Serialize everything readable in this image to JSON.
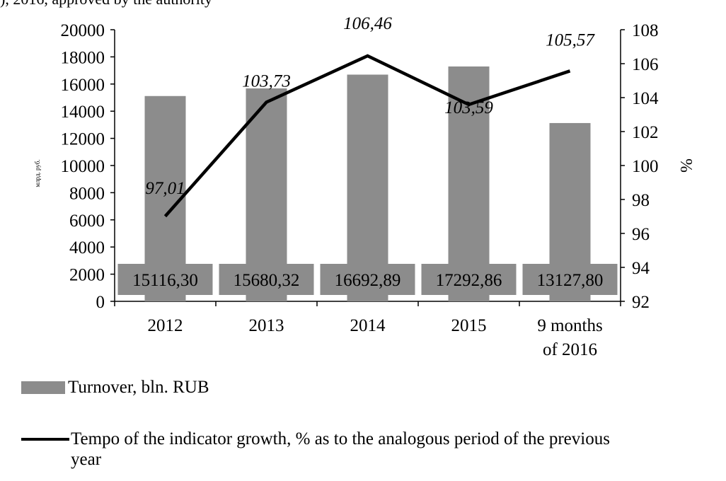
{
  "caption_fragment": "), 2016, approved by the authority",
  "chart_data": {
    "type": "bar",
    "categories": [
      "2012",
      "2013",
      "2014",
      "2015",
      "9 months of 2016"
    ],
    "category_lines": [
      [
        "2012"
      ],
      [
        "2013"
      ],
      [
        "2014"
      ],
      [
        "2015"
      ],
      [
        "9 months",
        "of 2016"
      ]
    ],
    "series": [
      {
        "name": "Turnover, bln. RUB",
        "type": "bar",
        "axis": "left",
        "values": [
          15116.3,
          15680.32,
          16692.89,
          17292.86,
          13127.8
        ],
        "labels": [
          "15116,30",
          "15680,32",
          "16692,89",
          "17292,86",
          "13127,80"
        ],
        "color": "#8c8c8c"
      },
      {
        "name": "Tempo of the indicator growth, % as to the analogous period of the previous year",
        "type": "line",
        "axis": "right",
        "values": [
          97.01,
          103.73,
          106.46,
          103.59,
          105.57
        ],
        "labels": [
          "97,01",
          "103,73",
          "106,46",
          "103,59",
          "105,57"
        ],
        "color": "#000000"
      }
    ],
    "ylabel": "млрд. руб.",
    "y2label": "%",
    "ylim": [
      0,
      20000
    ],
    "yticks": [
      0,
      2000,
      4000,
      6000,
      8000,
      10000,
      12000,
      14000,
      16000,
      18000,
      20000
    ],
    "y2lim": [
      92,
      108
    ],
    "y2ticks": [
      92,
      94,
      96,
      98,
      100,
      102,
      104,
      106,
      108
    ],
    "grid": false,
    "legend_position": "bottom",
    "legend": [
      "Turnover, bln. RUB",
      [
        "Tempo of the indicator growth, % as to the analogous period of the previous",
        "year"
      ]
    ]
  }
}
